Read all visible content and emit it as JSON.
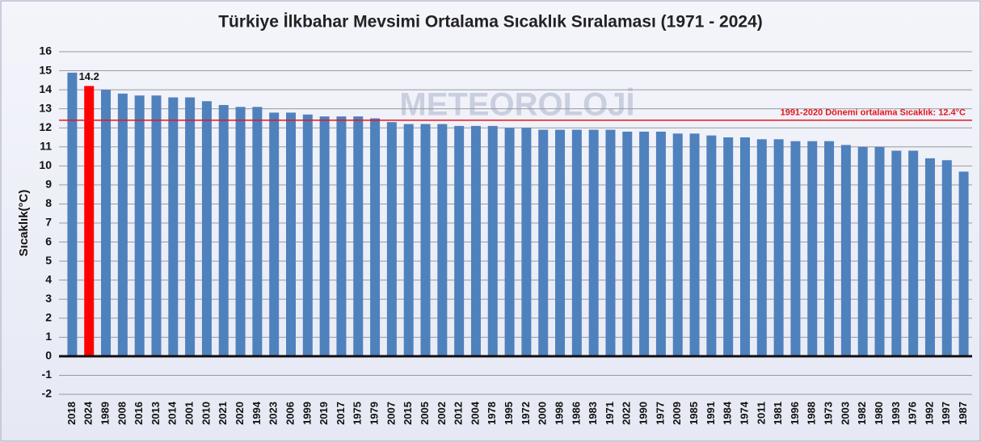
{
  "chart_data": {
    "type": "bar",
    "title": "Türkiye İlkbahar Mevsimi Ortalama Sıcaklık Sıralaması (1971 - 2024)",
    "y_label": "Sıcaklık(°C)",
    "watermark": "METEOROLOJİ",
    "categories": [
      "2018",
      "2024",
      "1989",
      "2008",
      "2016",
      "2013",
      "2014",
      "2001",
      "2010",
      "2021",
      "2020",
      "1994",
      "2023",
      "2006",
      "1999",
      "2019",
      "2017",
      "1975",
      "1979",
      "2007",
      "2015",
      "2005",
      "2002",
      "2012",
      "2004",
      "1978",
      "1995",
      "1972",
      "2000",
      "1998",
      "1986",
      "1983",
      "1971",
      "2022",
      "1990",
      "1977",
      "2009",
      "1985",
      "1991",
      "1984",
      "1974",
      "2011",
      "1981",
      "1996",
      "1988",
      "1973",
      "2003",
      "1982",
      "1980",
      "1993",
      "1976",
      "1992",
      "1997",
      "1987"
    ],
    "values": [
      14.9,
      14.2,
      14.0,
      13.8,
      13.7,
      13.7,
      13.6,
      13.6,
      13.4,
      13.2,
      13.1,
      13.1,
      12.8,
      12.8,
      12.7,
      12.6,
      12.6,
      12.6,
      12.5,
      12.3,
      12.2,
      12.2,
      12.2,
      12.1,
      12.1,
      12.1,
      12.0,
      12.0,
      11.9,
      11.9,
      11.9,
      11.9,
      11.9,
      11.8,
      11.8,
      11.8,
      11.7,
      11.7,
      11.6,
      11.5,
      11.5,
      11.4,
      11.4,
      11.3,
      11.3,
      11.3,
      11.1,
      11.0,
      11.0,
      10.8,
      10.8,
      10.4,
      10.3,
      9.7
    ],
    "value_labels": [
      null,
      "14.2",
      null,
      null,
      null,
      null,
      null,
      null,
      null,
      null,
      null,
      null,
      null,
      null,
      null,
      null,
      null,
      null,
      null,
      null,
      null,
      null,
      null,
      null,
      null,
      null,
      null,
      null,
      null,
      null,
      null,
      null,
      null,
      null,
      null,
      null,
      null,
      null,
      null,
      null,
      null,
      null,
      null,
      null,
      null,
      null,
      null,
      null,
      null,
      null,
      null,
      null,
      null,
      null
    ],
    "colors": [
      "#4f81bd",
      "#ff0000",
      "#4f81bd",
      "#4f81bd",
      "#4f81bd",
      "#4f81bd",
      "#4f81bd",
      "#4f81bd",
      "#4f81bd",
      "#4f81bd",
      "#4f81bd",
      "#4f81bd",
      "#4f81bd",
      "#4f81bd",
      "#4f81bd",
      "#4f81bd",
      "#4f81bd",
      "#4f81bd",
      "#4f81bd",
      "#4f81bd",
      "#4f81bd",
      "#4f81bd",
      "#4f81bd",
      "#4f81bd",
      "#4f81bd",
      "#4f81bd",
      "#4f81bd",
      "#4f81bd",
      "#4f81bd",
      "#4f81bd",
      "#4f81bd",
      "#4f81bd",
      "#4f81bd",
      "#4f81bd",
      "#4f81bd",
      "#4f81bd",
      "#4f81bd",
      "#4f81bd",
      "#4f81bd",
      "#4f81bd",
      "#4f81bd",
      "#4f81bd",
      "#4f81bd",
      "#4f81bd",
      "#4f81bd",
      "#4f81bd",
      "#4f81bd",
      "#4f81bd",
      "#4f81bd",
      "#4f81bd",
      "#4f81bd",
      "#4f81bd",
      "#4f81bd",
      "#4f81bd"
    ],
    "reference_line": {
      "value": 12.4,
      "label": "1991-2020 Dönemi ortalama Sıcaklık: 12.4°C",
      "color": "#e8141e"
    },
    "ylim": [
      -2,
      16
    ],
    "yticks": [
      -2,
      -1,
      0,
      1,
      2,
      3,
      4,
      5,
      6,
      7,
      8,
      9,
      10,
      11,
      12,
      13,
      14,
      15,
      16
    ],
    "grid": true
  }
}
